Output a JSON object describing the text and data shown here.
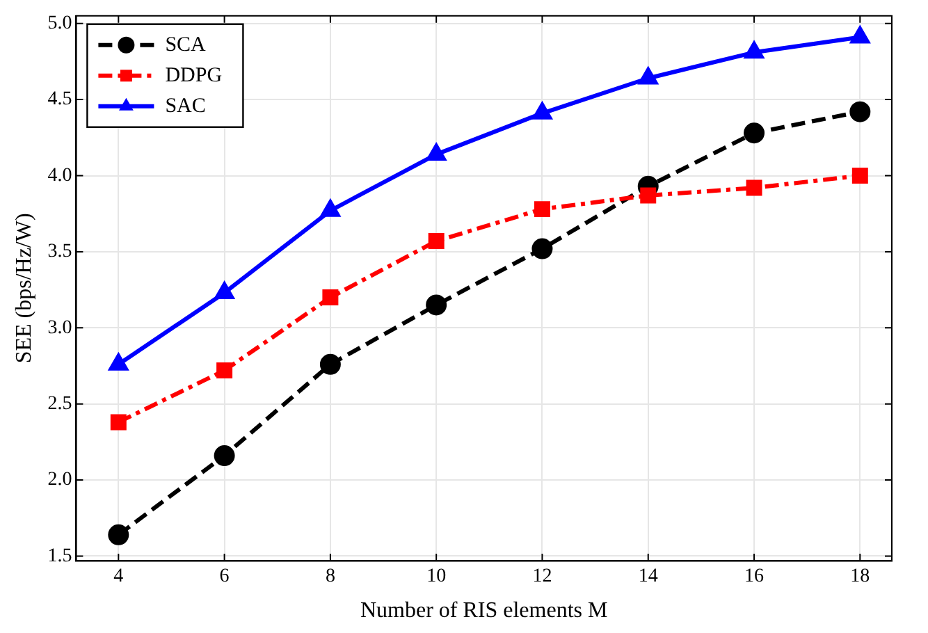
{
  "chart_data": {
    "type": "line",
    "xlabel": "Number of RIS elements M",
    "ylabel": "SEE (bps/Hz/W)",
    "x": [
      4,
      6,
      8,
      10,
      12,
      14,
      16,
      18
    ],
    "series": [
      {
        "name": "SCA",
        "color": "#000000",
        "marker": "circle",
        "line_style": "dashed",
        "values": [
          1.64,
          2.16,
          2.76,
          3.15,
          3.52,
          3.93,
          4.28,
          4.42
        ]
      },
      {
        "name": "DDPG",
        "color": "#ff0000",
        "marker": "square",
        "line_style": "dashdot",
        "values": [
          2.38,
          2.72,
          3.2,
          3.57,
          3.78,
          3.87,
          3.92,
          4.0
        ]
      },
      {
        "name": "SAC",
        "color": "#0000ff",
        "marker": "triangle",
        "line_style": "solid",
        "values": [
          2.76,
          3.23,
          3.77,
          4.14,
          4.41,
          4.64,
          4.81,
          4.91
        ]
      }
    ],
    "xlim": [
      3.2,
      18.6
    ],
    "ylim": [
      1.47,
      5.05
    ],
    "xticks": [
      4,
      6,
      8,
      10,
      12,
      14,
      16,
      18
    ],
    "yticks": [
      1.5,
      {
        "value": 2,
        "label": "2.0"
      },
      2.5,
      {
        "value": 3,
        "label": "3.0"
      },
      3.5,
      {
        "value": 4,
        "label": "4.0"
      },
      4.5,
      {
        "value": 5,
        "label": "5.0"
      }
    ],
    "grid": true,
    "legend": "top left"
  }
}
